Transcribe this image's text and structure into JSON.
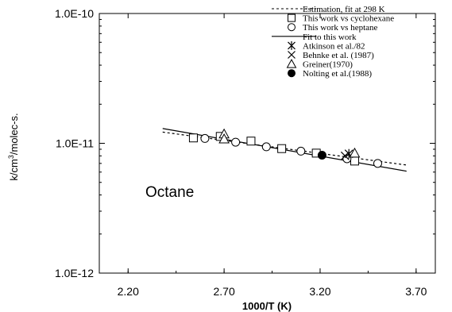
{
  "chart_data": {
    "type": "scatter",
    "title": "",
    "annotation": "Octane",
    "xlabel": "1000/T (K)",
    "ylabel_parts": [
      "k/cm",
      "3",
      "/molec-s."
    ],
    "x_ticks": [
      "2.20",
      "2.70",
      "3.20",
      "3.70"
    ],
    "x_tick_values": [
      2.2,
      2.7,
      3.2,
      3.7
    ],
    "y_ticks": [
      "1.0E-10",
      "1.0E-11",
      "1.0E-12"
    ],
    "y_tick_values": [
      1e-10,
      1e-11,
      1e-12
    ],
    "xlim": [
      2.05,
      3.8
    ],
    "ylim": [
      1e-12,
      1e-10
    ],
    "y_scale": "log",
    "grid": false,
    "legend_position": "top-right",
    "series": [
      {
        "name": "Estimation, fit at 298 K",
        "kind": "line",
        "style": "dotted",
        "color": "#000000",
        "x": [
          2.38,
          3.65
        ],
        "y": [
          1.22e-11,
          6.8e-12
        ]
      },
      {
        "name": "This work vs cyclohexane",
        "kind": "marker",
        "marker": "square",
        "color": "#000000",
        "x": [
          2.54,
          2.68,
          2.84,
          3.0,
          3.18,
          3.38
        ],
        "y": [
          1.1e-11,
          1.13e-11,
          1.04e-11,
          9.1e-12,
          8.4e-12,
          7.3e-12
        ]
      },
      {
        "name": "This work vs heptane",
        "kind": "marker",
        "marker": "circle",
        "color": "#000000",
        "x": [
          2.6,
          2.76,
          2.92,
          3.1,
          3.34,
          3.5
        ],
        "y": [
          1.09e-11,
          1.02e-11,
          9.4e-12,
          8.7e-12,
          7.6e-12,
          7e-12
        ]
      },
      {
        "name": "Fit to this work",
        "kind": "line",
        "style": "solid",
        "color": "#000000",
        "x": [
          2.38,
          3.65
        ],
        "y": [
          1.3e-11,
          6.1e-12
        ]
      },
      {
        "name": "Atkinson et al./82",
        "kind": "marker",
        "marker": "asterisk",
        "color": "#000000",
        "x": [
          3.35
        ],
        "y": [
          8.3e-12
        ]
      },
      {
        "name": "Behnke et al. (1987)",
        "kind": "marker",
        "marker": "x",
        "color": "#000000",
        "x": [
          3.33
        ],
        "y": [
          8e-12
        ]
      },
      {
        "name": "Greiner(1970)",
        "kind": "marker",
        "marker": "triangle",
        "color": "#000000",
        "x": [
          2.7,
          2.7,
          3.38
        ],
        "y": [
          1.18e-11,
          1.08e-11,
          8.4e-12
        ]
      },
      {
        "name": "Nolting et al.(1988)",
        "kind": "marker",
        "marker": "filled-circle",
        "color": "#000000",
        "x": [
          3.21
        ],
        "y": [
          8.1e-12
        ]
      }
    ]
  }
}
